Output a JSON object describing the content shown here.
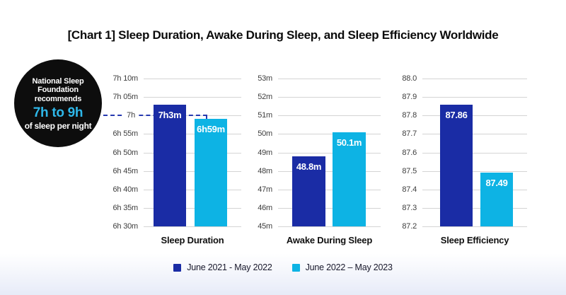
{
  "title": "[Chart 1] Sleep Duration, Awake During Sleep, and Sleep Efficiency Worldwide",
  "badge": {
    "line1": "National Sleep",
    "line2": "Foundation",
    "line3": "recommends",
    "highlight": "7h to 9h",
    "line4": "of sleep per night"
  },
  "colors": {
    "series": [
      "#1a2ca5",
      "#0db3e4"
    ],
    "reference_line": "#2639b0",
    "badge_background": "#0d0d0d",
    "badge_highlight_text": "#2eb7e9",
    "gridline": "#d4d4d4"
  },
  "legend": [
    {
      "label": "June 2021 - May 2022",
      "color": "#1a2ca5"
    },
    {
      "label": "June 2022 – May 2023",
      "color": "#0db3e4"
    }
  ],
  "chart_data": [
    {
      "type": "bar",
      "title": "Sleep Duration",
      "categories": [
        "June 2021 - May 2022",
        "June 2022 – May 2023"
      ],
      "values": [
        423,
        419
      ],
      "value_unit": "minutes",
      "bar_labels": [
        "7h3m",
        "6h59m"
      ],
      "ymin": 390,
      "ymax": 430,
      "ytick_labels": [
        "7h 10m",
        "7h 05m",
        "7h",
        "6h 55m",
        "6h 50m",
        "6h 45m",
        "6h 40m",
        "6h 35m",
        "6h 30m"
      ],
      "reference": {
        "value": 420,
        "label": "7h",
        "tick_index": 2
      }
    },
    {
      "type": "bar",
      "title": "Awake During Sleep",
      "categories": [
        "June 2021 - May 2022",
        "June 2022 – May 2023"
      ],
      "values": [
        48.8,
        50.1
      ],
      "value_unit": "minutes",
      "bar_labels": [
        "48.8m",
        "50.1m"
      ],
      "ymin": 45,
      "ymax": 53,
      "ytick_labels": [
        "53m",
        "52m",
        "51m",
        "50m",
        "49m",
        "48m",
        "47m",
        "46m",
        "45m"
      ]
    },
    {
      "type": "bar",
      "title": "Sleep Efficiency",
      "categories": [
        "June 2021 - May 2022",
        "June 2022 – May 2023"
      ],
      "values": [
        87.86,
        87.49
      ],
      "value_unit": "percent",
      "bar_labels": [
        "87.86",
        "87.49"
      ],
      "ymin": 87.2,
      "ymax": 88.0,
      "ytick_labels": [
        "88.0",
        "87.9",
        "87.8",
        "87.7",
        "87.6",
        "87.5",
        "87.4",
        "87.3",
        "87.2"
      ]
    }
  ]
}
